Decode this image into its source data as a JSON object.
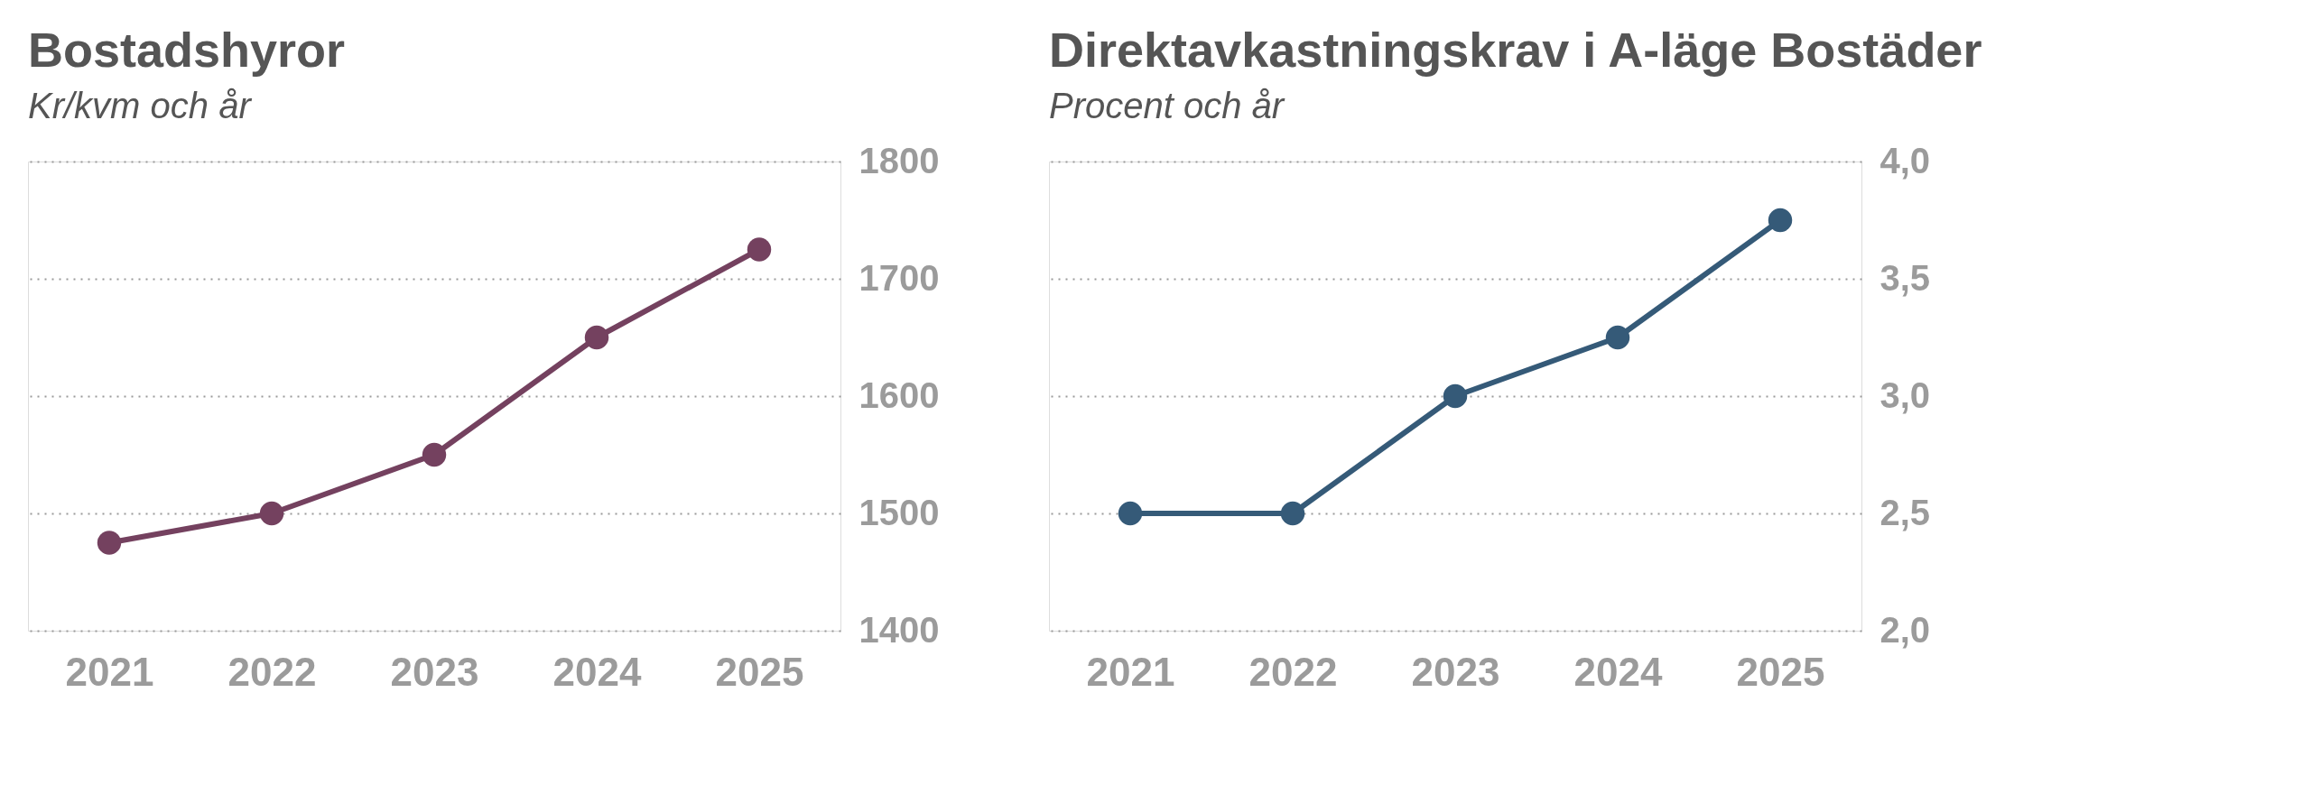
{
  "chart_data": [
    {
      "type": "line",
      "title": "Bostadshyror",
      "subtitle": "Kr/kvm och år",
      "categories": [
        "2021",
        "2022",
        "2023",
        "2024",
        "2025"
      ],
      "series": [
        {
          "color": "#74415f",
          "values": [
            1475,
            1500,
            1550,
            1650,
            1725
          ]
        }
      ],
      "ylim": [
        1400,
        1800
      ],
      "yticks": [
        1400,
        1500,
        1600,
        1700,
        1800
      ],
      "grid": "y",
      "marker": "circle",
      "line_style": "solid",
      "legend": false
    },
    {
      "type": "line",
      "title": "Direktavkastningskrav i A-läge Bostäder",
      "subtitle": "Procent och år",
      "categories": [
        "2021",
        "2022",
        "2023",
        "2024",
        "2025"
      ],
      "series": [
        {
          "color": "#355a78",
          "values": [
            2.5,
            2.5,
            3.0,
            3.25,
            3.75
          ]
        }
      ],
      "ylim": [
        2.0,
        4.0
      ],
      "yticks": [
        {
          "value": 2.0,
          "label": "2,0"
        },
        {
          "value": 2.5,
          "label": "2,5"
        },
        {
          "value": 3.0,
          "label": "3,0"
        },
        {
          "value": 3.5,
          "label": "3,5"
        },
        {
          "value": 4.0,
          "label": "4,0"
        }
      ],
      "grid": "y",
      "marker": "circle",
      "line_style": "solid",
      "legend": false
    }
  ]
}
